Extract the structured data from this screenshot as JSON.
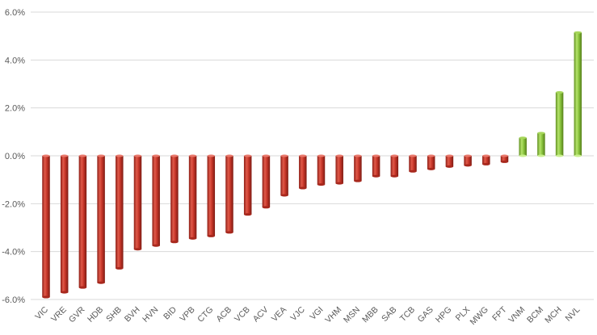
{
  "chart_data": {
    "type": "bar",
    "title": "",
    "xlabel": "",
    "ylabel": "",
    "ylim": [
      -6.0,
      6.0
    ],
    "yticks": [
      -6.0,
      -4.0,
      -2.0,
      0.0,
      2.0,
      4.0,
      6.0
    ],
    "ytick_labels": [
      "-6.0%",
      "-4.0%",
      "-2.0%",
      "0.0%",
      "2.0%",
      "4.0%",
      "6.0%"
    ],
    "grid": true,
    "legend": "none",
    "colors": {
      "negative": "#c0392b",
      "positive": "#8cc63f"
    },
    "categories": [
      "VIC",
      "VRE",
      "GVR",
      "HDB",
      "SHB",
      "BVH",
      "HVN",
      "BID",
      "VPB",
      "CTG",
      "ACB",
      "VCB",
      "ACV",
      "VEA",
      "VJC",
      "VGI",
      "VHM",
      "MSN",
      "MBB",
      "SAB",
      "TCB",
      "GAS",
      "HPG",
      "PLX",
      "MWG",
      "FPT",
      "VNM",
      "BCM",
      "MCH",
      "NVL"
    ],
    "values": [
      -5.9,
      -5.7,
      -5.5,
      -5.3,
      -4.7,
      -3.9,
      -3.75,
      -3.6,
      -3.45,
      -3.35,
      -3.2,
      -2.45,
      -2.15,
      -1.65,
      -1.35,
      -1.2,
      -1.15,
      -1.05,
      -0.85,
      -0.85,
      -0.65,
      -0.55,
      -0.45,
      -0.4,
      -0.35,
      -0.25,
      0.75,
      0.95,
      2.65,
      5.15
    ]
  }
}
